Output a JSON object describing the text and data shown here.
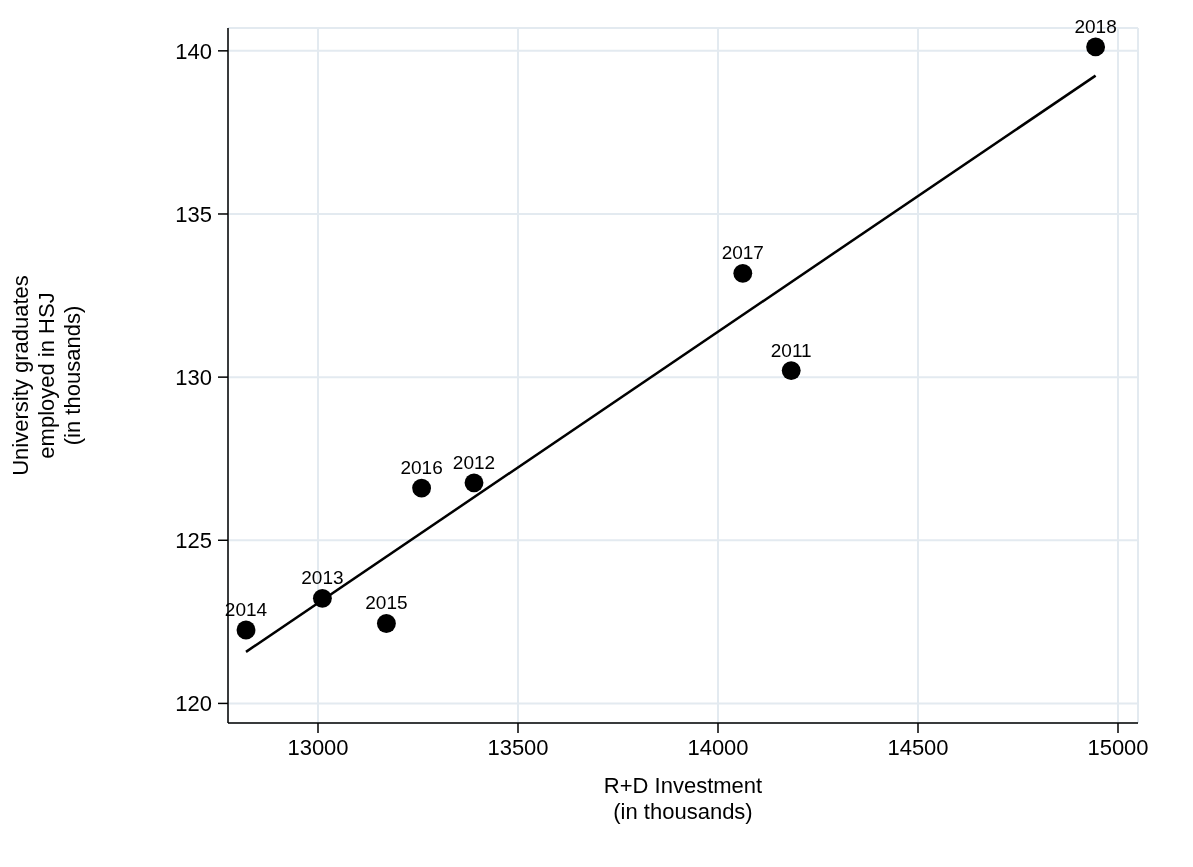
{
  "chart_data": {
    "type": "scatter",
    "xlabel": "R+D Investment\n(in thousands)",
    "ylabel": "University graduates\nemployed in HSJ\n(in thousands)",
    "x": [
      14183,
      13390,
      13011,
      12820,
      13171,
      13259,
      14062,
      14944
    ],
    "series": [
      {
        "color": "#000000",
        "values": [
          130.2,
          126.76,
          123.22,
          122.25,
          122.45,
          126.6,
          133.18,
          140.12
        ]
      },
      {
        "type": "line",
        "marker": "none",
        "color": "#000000",
        "x": [
          12820,
          14944
        ],
        "values": [
          121.58,
          139.24
        ]
      }
    ],
    "annotations": [
      {
        "text": "2011",
        "x": 14183,
        "y": 130.2
      },
      {
        "text": "2012",
        "x": 13390,
        "y": 126.76
      },
      {
        "text": "2013",
        "x": 13011,
        "y": 123.22
      },
      {
        "text": "2014",
        "x": 12820,
        "y": 122.25
      },
      {
        "text": "2015",
        "x": 13171,
        "y": 122.45
      },
      {
        "text": "2016",
        "x": 13259,
        "y": 126.6
      },
      {
        "text": "2017",
        "x": 14062,
        "y": 133.18
      },
      {
        "text": "2018",
        "x": 14944,
        "y": 140.12
      }
    ],
    "xlim": [
      12775,
      15050
    ],
    "ylim": [
      119.4,
      140.7
    ],
    "xticks": [
      13000,
      13500,
      14000,
      14500,
      15000
    ],
    "yticks": [
      120,
      125,
      130,
      135,
      140
    ],
    "grid": true,
    "marker": "circle",
    "line_style": "solid"
  }
}
